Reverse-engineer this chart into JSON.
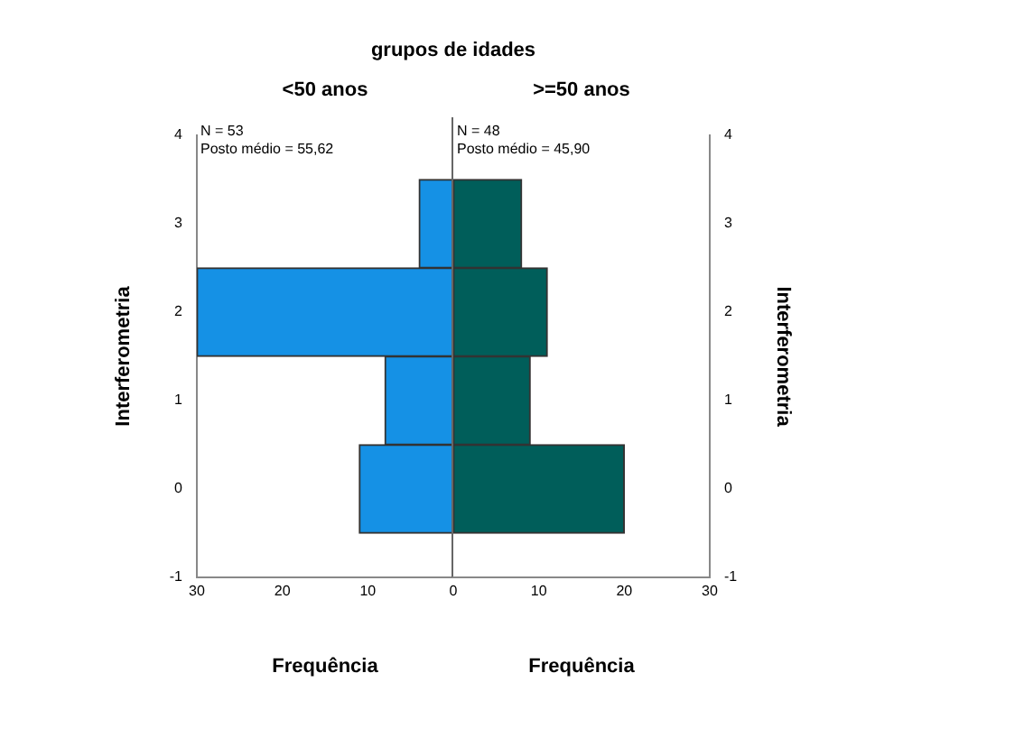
{
  "chart_data": [
    {
      "type": "histogram",
      "orientation": "horizontal",
      "title": "grupos de idades",
      "subtitle": "<50 anos",
      "xlabel": "Frequência",
      "ylabel": "Interferometria",
      "bins": [
        -0.5,
        0.5,
        1.5,
        2.5,
        3.5
      ],
      "values": [
        11,
        8,
        30,
        4
      ],
      "color": "#1591e5",
      "xlim": [
        30,
        0
      ],
      "xticks": [
        30,
        20,
        10
      ],
      "ylim": [
        -1,
        4
      ],
      "yticks": [
        -1,
        0,
        1,
        2,
        3,
        4
      ],
      "annotations": [
        "N = 53",
        "Posto médio = 55,62"
      ],
      "grid": false
    },
    {
      "type": "histogram",
      "orientation": "horizontal",
      "subtitle": ">=50 anos",
      "xlabel": "Frequência",
      "ylabel": "Interferometria",
      "bins": [
        -0.5,
        0.5,
        1.5,
        2.5,
        3.5
      ],
      "values": [
        20,
        9,
        11,
        8
      ],
      "color": "#005e5a",
      "xlim": [
        0,
        30
      ],
      "xticks": [
        0,
        10,
        20,
        30
      ],
      "ylim": [
        -1,
        4
      ],
      "yticks": [
        -1,
        0,
        1,
        2,
        3,
        4
      ],
      "annotations": [
        "N = 48",
        "Posto médio = 45,90"
      ],
      "grid": false
    }
  ]
}
